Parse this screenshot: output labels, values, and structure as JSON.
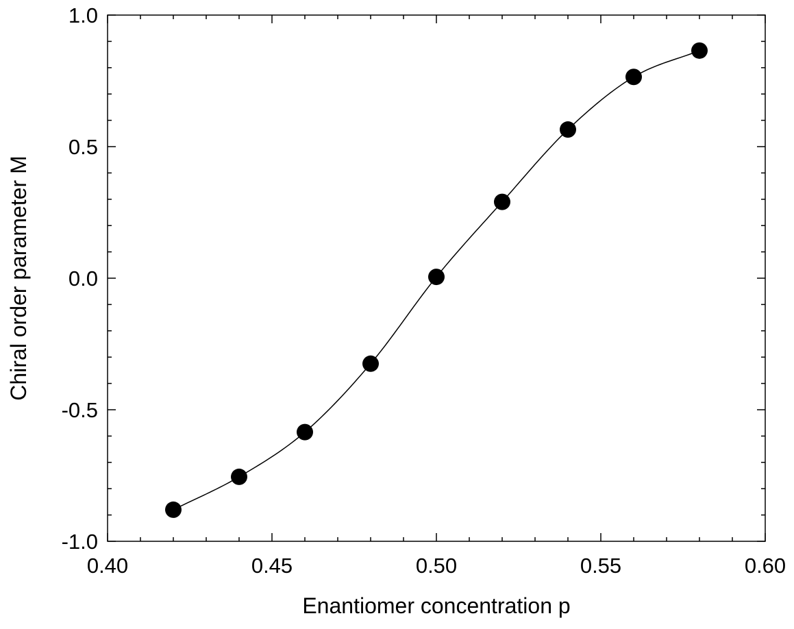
{
  "chart_data": {
    "type": "scatter",
    "title": "",
    "xlabel": "Enantiomer concentration p",
    "ylabel": "Chiral order parameter M",
    "xlim": [
      0.4,
      0.6
    ],
    "ylim": [
      -1.0,
      1.0
    ],
    "x_ticks": [
      0.4,
      0.45,
      0.5,
      0.55,
      0.6
    ],
    "x_tick_labels": [
      "0.40",
      "0.45",
      "0.50",
      "0.55",
      "0.60"
    ],
    "y_ticks": [
      -1.0,
      -0.5,
      0.0,
      0.5,
      1.0
    ],
    "y_tick_labels": [
      "-1.0",
      "-0.5",
      "0.0",
      "0.5",
      "1.0"
    ],
    "grid": false,
    "series": [
      {
        "marker": "filled-circle",
        "color": "#000000",
        "x": [
          0.42,
          0.44,
          0.46,
          0.48,
          0.5,
          0.52,
          0.54,
          0.56,
          0.58
        ],
        "y": [
          -0.88,
          -0.755,
          -0.585,
          -0.325,
          0.005,
          0.29,
          0.565,
          0.765,
          0.865
        ]
      }
    ],
    "fit_line": {
      "style": "smooth-curve",
      "color": "#000000"
    }
  }
}
